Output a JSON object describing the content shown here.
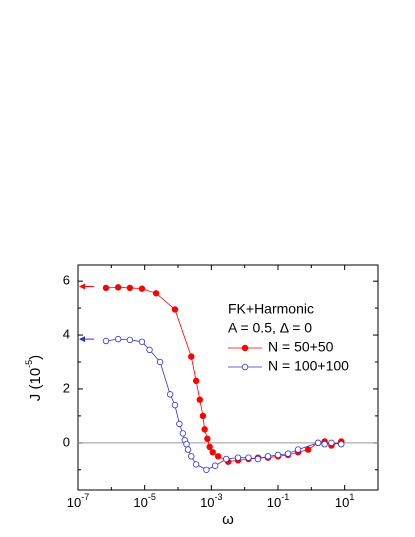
{
  "chart_data": {
    "type": "line",
    "x_label": "ω",
    "y_label": "J (10^-5)",
    "legend_title": [
      "FK+Harmonic",
      "A = 0.5, Δ = 0"
    ],
    "x_scale": "log",
    "xlim": [
      1e-07,
      100
    ],
    "ylim": [
      -1.75,
      6.6
    ],
    "xticks": [
      {
        "value": 1e-07,
        "label": "10^-7"
      },
      {
        "value": 1e-05,
        "label": "10^-5"
      },
      {
        "value": 0.001,
        "label": "10^-3"
      },
      {
        "value": 0.1,
        "label": "10^-1"
      },
      {
        "value": 10,
        "label": "10^1"
      }
    ],
    "x_minor_ticks": [
      1e-06,
      0.0001,
      0.01,
      1,
      100
    ],
    "yticks": [
      0,
      2,
      4,
      6
    ],
    "y_minor_ticks": [
      -1,
      1,
      3,
      5
    ],
    "hline": 0,
    "hline_color": "#999999",
    "series": [
      {
        "name": "N = 50+50",
        "color": "#ff0000",
        "filled": true,
        "arrow_value": 5.8,
        "x": [
          6.9e-07,
          1.6e-06,
          3.6e-06,
          8.3e-06,
          2.2e-05,
          8.1e-05,
          0.00025,
          0.00035,
          0.00045,
          0.00056,
          0.00063,
          0.00076,
          0.00089,
          0.0011,
          0.0016,
          0.0032,
          0.0063,
          0.013,
          0.025,
          0.05,
          0.1,
          0.2,
          0.4,
          0.8,
          1.6,
          2.5,
          4,
          7.9
        ],
        "values": [
          5.75,
          5.77,
          5.75,
          5.72,
          5.55,
          4.95,
          3.2,
          2.3,
          1.6,
          1.0,
          0.5,
          0.15,
          -0.15,
          -0.35,
          -0.5,
          -0.7,
          -0.65,
          -0.6,
          -0.55,
          -0.55,
          -0.5,
          -0.45,
          -0.35,
          -0.25,
          0.0,
          0.05,
          -0.1,
          0.05
        ]
      },
      {
        "name": "N = 100+100",
        "color": "#3333cc",
        "filled": false,
        "arrow_value": 3.85,
        "x": [
          6.9e-07,
          1.6e-06,
          3.6e-06,
          8.3e-06,
          1.4e-05,
          2.9e-05,
          5.8e-05,
          8.1e-05,
          0.00011,
          0.00014,
          0.00016,
          0.00018,
          0.0002,
          0.00025,
          0.00035,
          0.00071,
          0.0013,
          0.0028,
          0.0063,
          0.013,
          0.025,
          0.05,
          0.1,
          0.2,
          0.4,
          1.6,
          2.5,
          4,
          7.9
        ],
        "values": [
          3.78,
          3.85,
          3.82,
          3.75,
          3.45,
          3.0,
          1.8,
          1.4,
          0.7,
          0.35,
          0.1,
          -0.05,
          -0.25,
          -0.5,
          -0.8,
          -1.0,
          -0.85,
          -0.6,
          -0.55,
          -0.55,
          -0.6,
          -0.5,
          -0.45,
          -0.4,
          -0.25,
          0.0,
          -0.05,
          0.0,
          -0.05
        ]
      }
    ]
  }
}
